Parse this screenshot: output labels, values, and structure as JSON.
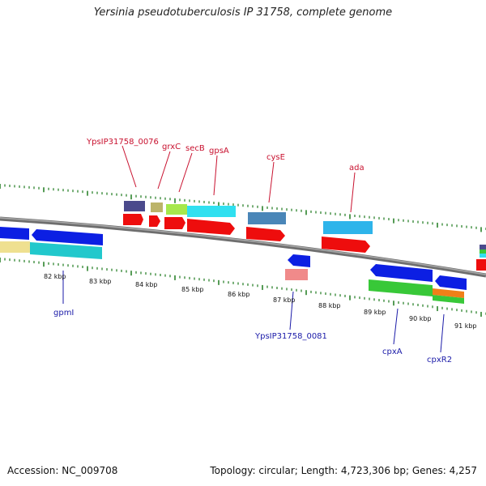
{
  "title": "Yersinia pseudotuberculosis IP 31758, complete genome",
  "footer": {
    "accession": "Accession: NC_009708",
    "info": "Topology: circular; Length: 4,723,306 bp; Genes: 4,257"
  },
  "colors": {
    "top_label": "#c8102e",
    "bottom_label": "#1a1aa8",
    "tick": "#1e7a1e",
    "axis": "#808080"
  },
  "kbp_labels": [
    "82 kbp",
    "83 kbp",
    "84 kbp",
    "85 kbp",
    "86 kbp",
    "87 kbp",
    "88 kbp",
    "89 kbp",
    "90 kbp",
    "91 kbp"
  ],
  "top_labels": [
    "YpsIP31758_0076",
    "grxC",
    "secB",
    "gpsA",
    "cysE",
    "ada"
  ],
  "bottom_labels": [
    "gpmI",
    "YpsIP31758_0081",
    "cpxA",
    "cpxR2"
  ]
}
